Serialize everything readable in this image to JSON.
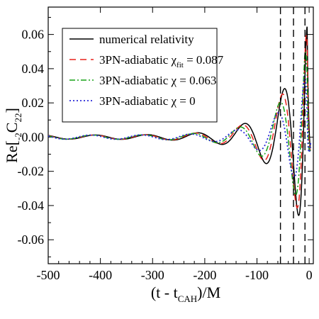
{
  "chart_data": {
    "type": "line",
    "xlabel": {
      "main": "(t - t",
      "sub": "CAH",
      "tail": ")/M"
    },
    "ylabel": {
      "main": "Re[",
      "pre_sub": "-2",
      "letter": "C",
      "sub": "22",
      "tail": "]"
    },
    "xlim": [
      -500,
      8
    ],
    "ylim": [
      -0.074,
      0.076
    ],
    "xticks": [
      -500,
      -400,
      -300,
      -200,
      -100,
      0
    ],
    "xtick_labels": [
      "-500",
      "-400",
      "-300",
      "-200",
      "-100",
      "0"
    ],
    "yticks": [
      -0.06,
      -0.04,
      -0.02,
      0.0,
      0.02,
      0.04,
      0.06
    ],
    "ytick_labels": [
      "-0.06",
      "-0.04",
      "-0.02",
      "0.00",
      "0.02",
      "0.04",
      "0.06"
    ],
    "grid": false,
    "legend_position": "top-left",
    "vertical_lines": [
      -55,
      -30,
      -8
    ],
    "series": [
      {
        "label_main": "numerical relativity",
        "chi_sub": "",
        "label_value": "",
        "color": "#000000",
        "dash": "",
        "peak": 0.076,
        "decay": 55,
        "base_amp": 0.0012,
        "omega0": 0.058,
        "phase": 0.0
      },
      {
        "label_main": "3PN-adiabatic χ",
        "chi_sub": "fit",
        "label_value": " = 0.087",
        "color": "#e8221c",
        "dash": "9,6",
        "peak": 0.072,
        "decay": 55,
        "base_amp": 0.0012,
        "omega0": 0.0585,
        "phase": 0.4
      },
      {
        "label_main": "3PN-adiabatic χ",
        "chi_sub": "",
        "label_value": " = 0.063",
        "color": "#17a317",
        "dash": "8,3,2,3",
        "peak": 0.062,
        "decay": 55,
        "base_amp": 0.0012,
        "omega0": 0.059,
        "phase": 0.8
      },
      {
        "label_main": "3PN-adiabatic χ",
        "chi_sub": "",
        "label_value": " = 0",
        "color": "#2a2ad8",
        "dash": "2,3",
        "peak": 0.045,
        "decay": 55,
        "base_amp": 0.0012,
        "omega0": 0.0595,
        "phase": 1.2
      }
    ]
  }
}
